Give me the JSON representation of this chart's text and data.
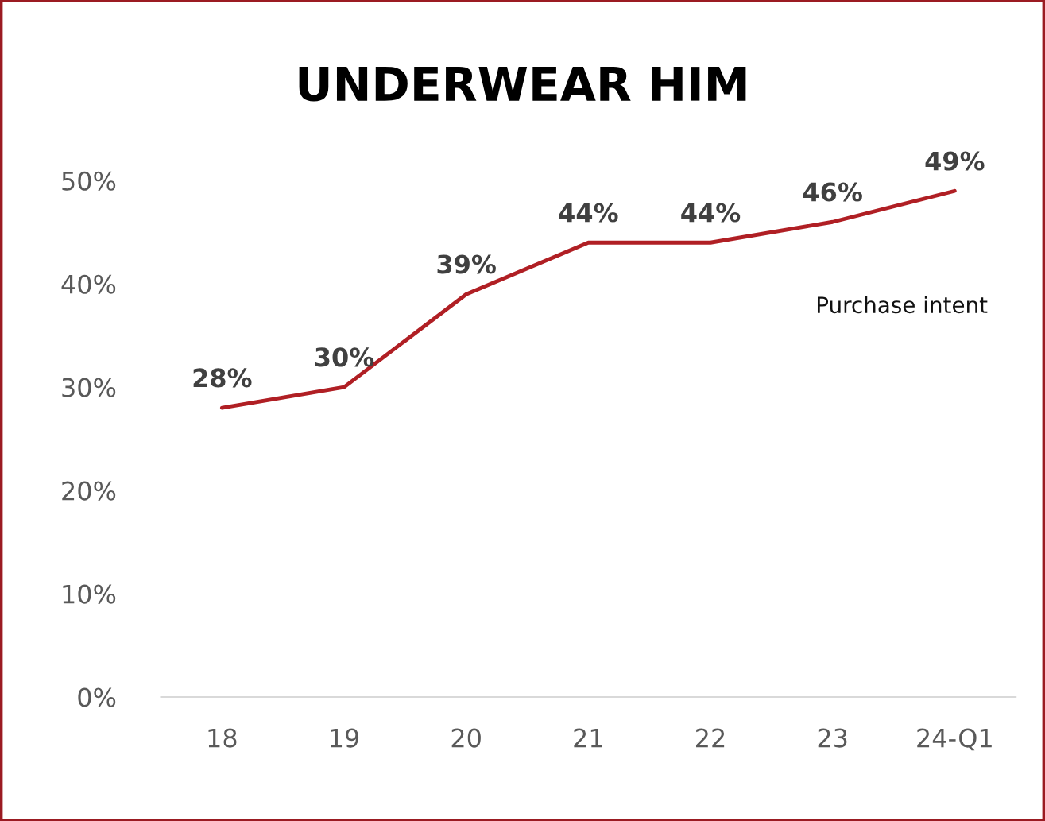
{
  "chart_data": {
    "type": "line",
    "title": "UNDERWEAR HIM",
    "categories": [
      "18",
      "19",
      "20",
      "21",
      "22",
      "23",
      "24-Q1"
    ],
    "series": [
      {
        "name": "Purchase intent",
        "color": "#b01f24",
        "values": [
          28,
          30,
          39,
          44,
          44,
          46,
          49
        ]
      }
    ],
    "value_labels": [
      "28%",
      "30%",
      "39%",
      "44%",
      "44%",
      "46%",
      "49%"
    ],
    "ylim": [
      0,
      50
    ],
    "yticks": [
      {
        "value": 0,
        "label": "0%"
      },
      {
        "value": 10,
        "label": "10%"
      },
      {
        "value": 20,
        "label": "20%"
      },
      {
        "value": 30,
        "label": "30%"
      },
      {
        "value": 40,
        "label": "40%"
      },
      {
        "value": 50,
        "label": "50%"
      }
    ],
    "grid": false,
    "legend": false,
    "marker": "none",
    "line_style": "solid"
  }
}
